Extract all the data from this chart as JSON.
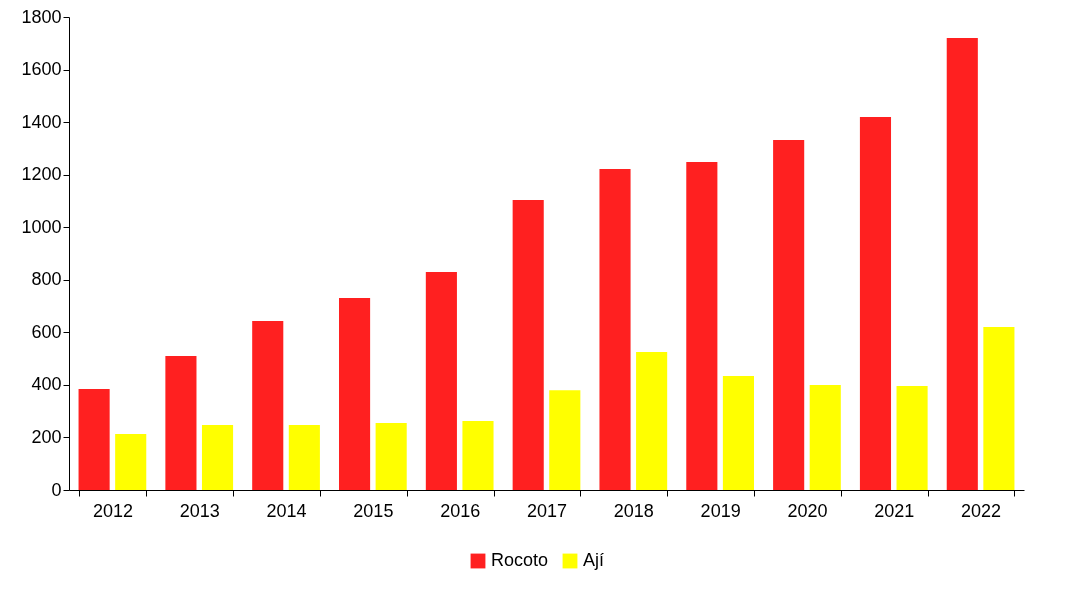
{
  "chart_data": {
    "type": "bar",
    "categories": [
      "2012",
      "2013",
      "2014",
      "2015",
      "2016",
      "2017",
      "2018",
      "2019",
      "2020",
      "2021",
      "2022"
    ],
    "series": [
      {
        "name": "Rocoto",
        "color": "#ff2020",
        "values": [
          384,
          510,
          643,
          731,
          830,
          1104,
          1222,
          1248,
          1332,
          1419,
          1720
        ]
      },
      {
        "name": "Ají",
        "color": "#ffff00",
        "values": [
          213,
          247,
          247,
          255,
          263,
          380,
          525,
          434,
          400,
          396,
          620
        ]
      }
    ],
    "ylim": [
      0,
      1800
    ],
    "yticks": [
      0,
      200,
      400,
      600,
      800,
      1000,
      1200,
      1400,
      1600,
      1800
    ],
    "grid": false,
    "legend": "bottom"
  }
}
